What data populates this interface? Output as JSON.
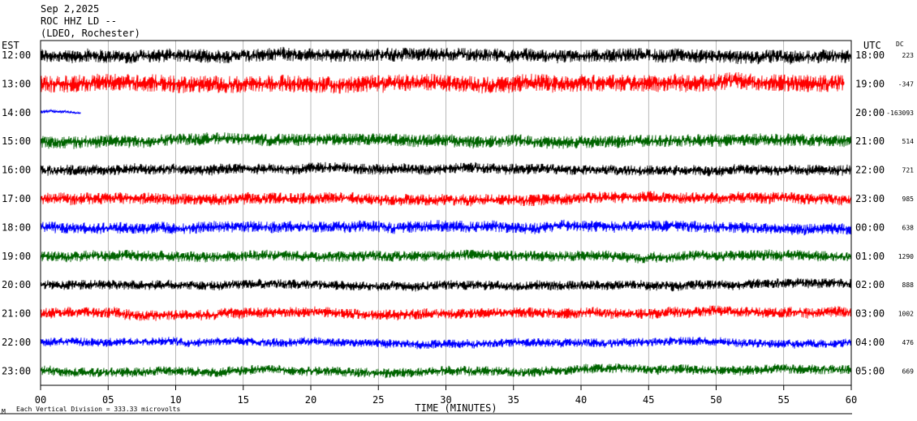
{
  "header": {
    "date": "Sep 2,2025",
    "station": "ROC HHZ LD --",
    "network": "(LDEO, Rochester)"
  },
  "chart_data": {
    "type": "line",
    "title": "",
    "left_axis_label": "EST",
    "right_axis_label": "UTC",
    "dc_label": "DC",
    "xlabel": "TIME (MINUTES)",
    "xlim": [
      0,
      60
    ],
    "x_ticks": [
      "00",
      "05",
      "10",
      "15",
      "20",
      "25",
      "30",
      "35",
      "40",
      "45",
      "50",
      "55",
      "60"
    ],
    "footer_note": "Each Vertical Division =  333.33 microvolts",
    "grid": true,
    "series": [
      {
        "est": "12:00",
        "utc": "18:00",
        "dc": "223",
        "color": "#000000",
        "amplitude": 14,
        "end_min": 60
      },
      {
        "est": "13:00",
        "utc": "19:00",
        "dc": "-347",
        "color": "#ff0000",
        "amplitude": 18,
        "end_min": 59.5
      },
      {
        "est": "14:00",
        "utc": "20:00",
        "dc": "-163093",
        "color": "#0000ff",
        "amplitude": 3,
        "end_min": 3
      },
      {
        "est": "15:00",
        "utc": "21:00",
        "dc": "514",
        "color": "#006400",
        "amplitude": 13,
        "end_min": 60
      },
      {
        "est": "16:00",
        "utc": "22:00",
        "dc": "721",
        "color": "#000000",
        "amplitude": 11,
        "end_min": 60
      },
      {
        "est": "17:00",
        "utc": "23:00",
        "dc": "985",
        "color": "#ff0000",
        "amplitude": 12,
        "end_min": 60
      },
      {
        "est": "18:00",
        "utc": "00:00",
        "dc": "638",
        "color": "#0000ff",
        "amplitude": 12,
        "end_min": 60
      },
      {
        "est": "19:00",
        "utc": "01:00",
        "dc": "1290",
        "color": "#006400",
        "amplitude": 11,
        "end_min": 60
      },
      {
        "est": "20:00",
        "utc": "02:00",
        "dc": "888",
        "color": "#000000",
        "amplitude": 10,
        "end_min": 60
      },
      {
        "est": "21:00",
        "utc": "03:00",
        "dc": "1002",
        "color": "#ff0000",
        "amplitude": 11,
        "end_min": 60
      },
      {
        "est": "22:00",
        "utc": "04:00",
        "dc": "476",
        "color": "#0000ff",
        "amplitude": 9,
        "end_min": 60
      },
      {
        "est": "23:00",
        "utc": "05:00",
        "dc": "669",
        "color": "#006400",
        "amplitude": 10,
        "end_min": 60
      }
    ]
  }
}
